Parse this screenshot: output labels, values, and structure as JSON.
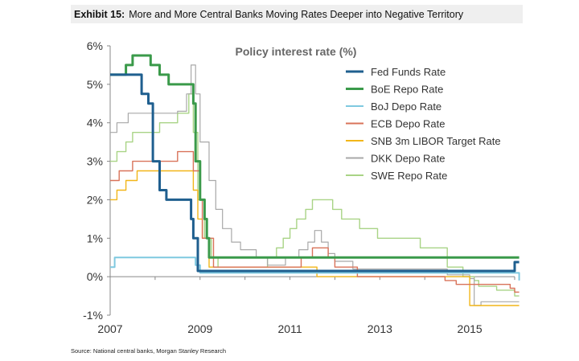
{
  "exhibit": {
    "label": "Exhibit 15:",
    "title": "More and More Central Banks Moving Rates Deeper into Negative Territory"
  },
  "source": "Source: National central banks, Morgan Stanley Research",
  "chart_data": {
    "type": "line",
    "title": "Policy interest rate (%)",
    "xlabel": "",
    "ylabel": "",
    "xlim": [
      2007.0,
      2016.0
    ],
    "ylim": [
      -1,
      6
    ],
    "y_ticks": [
      -1,
      0,
      1,
      2,
      3,
      4,
      5,
      6
    ],
    "y_tick_labels": [
      "-1%",
      "0%",
      "1%",
      "2%",
      "3%",
      "4%",
      "5%",
      "6%"
    ],
    "x_ticks": [
      2007,
      2009,
      2011,
      2013,
      2015
    ],
    "x_tick_labels": [
      "2007",
      "2009",
      "2011",
      "2013",
      "2015"
    ],
    "grid": false,
    "legend_position": "top-right",
    "series": [
      {
        "name": "Fed Funds Rate",
        "color": "#1f5f8f",
        "width": 3,
        "points": [
          [
            2007.0,
            5.25
          ],
          [
            2007.5,
            5.25
          ],
          [
            2007.7,
            4.75
          ],
          [
            2007.85,
            4.5
          ],
          [
            2007.95,
            3.0
          ],
          [
            2008.05,
            3.0
          ],
          [
            2008.1,
            2.25
          ],
          [
            2008.25,
            2.0
          ],
          [
            2008.75,
            2.0
          ],
          [
            2008.8,
            1.5
          ],
          [
            2008.85,
            1.0
          ],
          [
            2008.95,
            0.15
          ],
          [
            2015.95,
            0.15
          ],
          [
            2016.0,
            0.38
          ],
          [
            2016.1,
            0.38
          ]
        ]
      },
      {
        "name": "BoE Repo Rate",
        "color": "#3a9a4a",
        "width": 3,
        "points": [
          [
            2007.0,
            5.25
          ],
          [
            2007.35,
            5.5
          ],
          [
            2007.5,
            5.75
          ],
          [
            2007.9,
            5.5
          ],
          [
            2008.1,
            5.25
          ],
          [
            2008.3,
            5.0
          ],
          [
            2008.8,
            5.0
          ],
          [
            2008.85,
            4.5
          ],
          [
            2008.9,
            3.0
          ],
          [
            2009.0,
            2.0
          ],
          [
            2009.1,
            1.5
          ],
          [
            2009.15,
            1.0
          ],
          [
            2009.2,
            0.5
          ],
          [
            2016.1,
            0.5
          ]
        ]
      },
      {
        "name": "BoJ Depo Rate",
        "color": "#7fc9e0",
        "width": 2,
        "points": [
          [
            2007.0,
            0.25
          ],
          [
            2007.1,
            0.5
          ],
          [
            2008.8,
            0.5
          ],
          [
            2008.9,
            0.3
          ],
          [
            2009.0,
            0.1
          ],
          [
            2016.0,
            0.1
          ],
          [
            2016.1,
            -0.1
          ]
        ]
      },
      {
        "name": "ECB Depo Rate",
        "color": "#d9735a",
        "width": 1.4,
        "points": [
          [
            2007.0,
            2.5
          ],
          [
            2007.2,
            2.75
          ],
          [
            2007.5,
            3.0
          ],
          [
            2008.5,
            3.25
          ],
          [
            2008.8,
            3.25
          ],
          [
            2008.85,
            2.75
          ],
          [
            2009.0,
            2.0
          ],
          [
            2009.05,
            1.0
          ],
          [
            2009.3,
            0.25
          ],
          [
            2011.25,
            0.5
          ],
          [
            2011.5,
            0.75
          ],
          [
            2011.85,
            0.5
          ],
          [
            2012.0,
            0.25
          ],
          [
            2012.5,
            0.0
          ],
          [
            2014.45,
            -0.1
          ],
          [
            2014.7,
            -0.2
          ],
          [
            2015.9,
            -0.3
          ],
          [
            2016.0,
            -0.4
          ],
          [
            2016.1,
            -0.4
          ]
        ]
      },
      {
        "name": "SNB 3m LIBOR Target Rate",
        "color": "#f2b619",
        "width": 1.4,
        "points": [
          [
            2007.0,
            2.0
          ],
          [
            2007.15,
            2.25
          ],
          [
            2007.35,
            2.5
          ],
          [
            2007.6,
            2.75
          ],
          [
            2008.8,
            2.75
          ],
          [
            2008.85,
            2.25
          ],
          [
            2008.95,
            1.5
          ],
          [
            2009.05,
            1.0
          ],
          [
            2009.2,
            0.25
          ],
          [
            2011.5,
            0.25
          ],
          [
            2011.6,
            0.0
          ],
          [
            2014.9,
            0.0
          ],
          [
            2015.0,
            -0.75
          ],
          [
            2016.1,
            -0.75
          ]
        ]
      },
      {
        "name": "DKK Depo Rate",
        "color": "#a8a8a8",
        "width": 1.2,
        "points": [
          [
            2007.0,
            3.75
          ],
          [
            2007.15,
            4.0
          ],
          [
            2007.4,
            4.25
          ],
          [
            2008.5,
            4.3
          ],
          [
            2008.7,
            4.75
          ],
          [
            2008.8,
            5.5
          ],
          [
            2008.9,
            4.75
          ],
          [
            2009.0,
            3.5
          ],
          [
            2009.2,
            2.5
          ],
          [
            2009.35,
            1.75
          ],
          [
            2009.5,
            1.25
          ],
          [
            2009.7,
            0.9
          ],
          [
            2009.9,
            0.7
          ],
          [
            2010.25,
            0.5
          ],
          [
            2010.5,
            0.3
          ],
          [
            2010.9,
            0.5
          ],
          [
            2011.2,
            0.7
          ],
          [
            2011.4,
            0.9
          ],
          [
            2011.55,
            1.2
          ],
          [
            2011.7,
            0.9
          ],
          [
            2011.85,
            0.6
          ],
          [
            2012.0,
            0.4
          ],
          [
            2012.4,
            0.2
          ],
          [
            2013.0,
            0.2
          ],
          [
            2014.0,
            0.2
          ],
          [
            2014.5,
            0.05
          ],
          [
            2015.0,
            -0.05
          ],
          [
            2015.1,
            -0.75
          ],
          [
            2015.25,
            -0.65
          ],
          [
            2016.1,
            -0.65
          ]
        ]
      },
      {
        "name": "SWE Repo Rate",
        "color": "#a9d486",
        "width": 1.4,
        "points": [
          [
            2007.0,
            3.0
          ],
          [
            2007.15,
            3.25
          ],
          [
            2007.35,
            3.5
          ],
          [
            2007.5,
            3.75
          ],
          [
            2008.1,
            4.0
          ],
          [
            2008.5,
            4.25
          ],
          [
            2008.75,
            4.75
          ],
          [
            2008.85,
            3.75
          ],
          [
            2008.95,
            2.0
          ],
          [
            2009.1,
            1.0
          ],
          [
            2009.25,
            0.5
          ],
          [
            2009.4,
            0.25
          ],
          [
            2010.4,
            0.25
          ],
          [
            2010.5,
            0.5
          ],
          [
            2010.7,
            0.75
          ],
          [
            2010.85,
            1.0
          ],
          [
            2011.0,
            1.25
          ],
          [
            2011.15,
            1.5
          ],
          [
            2011.35,
            1.75
          ],
          [
            2011.5,
            2.0
          ],
          [
            2011.95,
            1.75
          ],
          [
            2012.15,
            1.5
          ],
          [
            2012.55,
            1.25
          ],
          [
            2012.95,
            1.0
          ],
          [
            2013.9,
            0.75
          ],
          [
            2014.5,
            0.25
          ],
          [
            2014.85,
            0.0
          ],
          [
            2015.1,
            -0.1
          ],
          [
            2015.2,
            -0.25
          ],
          [
            2015.6,
            -0.35
          ],
          [
            2016.0,
            -0.5
          ],
          [
            2016.1,
            -0.5
          ]
        ]
      }
    ]
  }
}
